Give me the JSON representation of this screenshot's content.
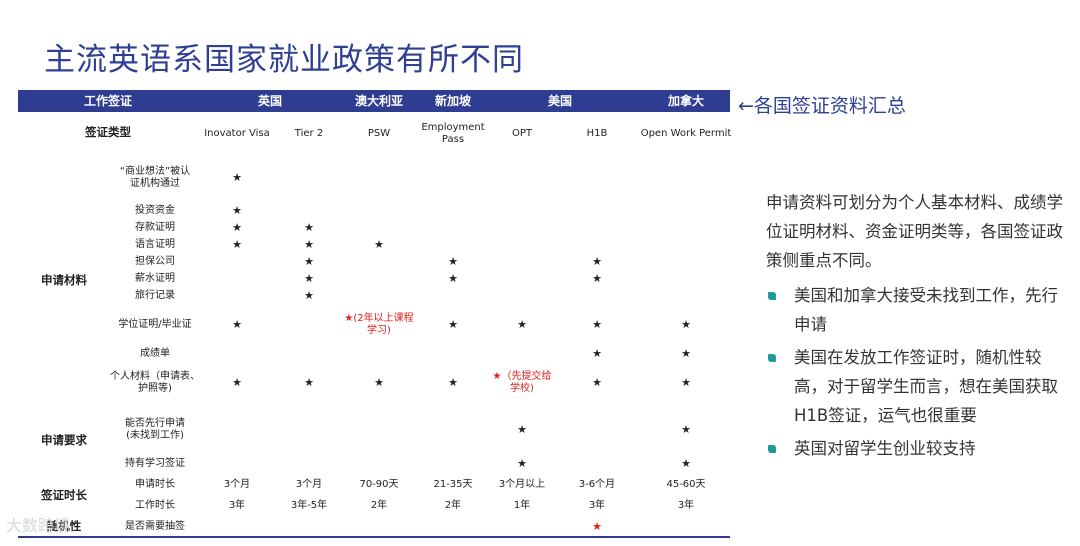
{
  "title": "主流英语系国家就业政策有所不同",
  "band": {
    "work_visa": "工作签证",
    "countries": [
      "英国",
      "澳大利亚",
      "新加坡",
      "美国",
      "加拿大"
    ]
  },
  "summary_label": "←各国签证资料汇总",
  "visa_type_label": "签证类型",
  "visa_types": [
    "Inovator Visa",
    "Tier 2",
    "PSW",
    "Employment\nPass",
    "OPT",
    "H1B",
    "Open Work Permit"
  ],
  "groups": {
    "materials": "申请材料",
    "requirements": "申请要求",
    "duration": "签证时长",
    "randomness": "随机性"
  },
  "items": {
    "business_idea": "“商业想法”被认\n证机构通过",
    "investment": "投资资金",
    "deposit": "存款证明",
    "language": "语言证明",
    "sponsor": "担保公司",
    "salary": "薪水证明",
    "travel": "旅行记录",
    "degree": "学位证明/毕业证",
    "transcript": "成绩单",
    "personal": "个人材料（申请表、\n护照等)",
    "apply_first": "能否先行申请\n(未找到工作)",
    "student_visa": "持有学习签证",
    "apply_time": "申请时长",
    "work_time": "工作时长",
    "lottery": "是否需要抽签"
  },
  "star": "★",
  "notes": {
    "psw_degree": "★(2年以上课程\n学习)",
    "opt_personal": "★（先提交给\n学校)"
  },
  "apply_time": [
    "3个月",
    "3个月",
    "70-90天",
    "21-35天",
    "3个月以上",
    "3-6个月",
    "45-60天"
  ],
  "work_time": [
    "3年",
    "3年-5年",
    "2年",
    "2年",
    "1年",
    "3年",
    "3年"
  ],
  "panel": {
    "intro": "申请资料可划分为个人基本材料、成绩学位证明材料、资金证明类等，各国签证政策侧重点不同。",
    "bullets": [
      "美国和加拿大接受未找到工作，先行申请",
      "美国在发放工作签证时，随机性较高，对于留学生而言，想在美国获取H1B签证，运气也很重要",
      "英国对留学生创业较支持"
    ]
  },
  "watermark": "大数跨境",
  "colors": {
    "navy": "#2e3c91",
    "teal": "#1f9a9a",
    "red": "#e02020"
  }
}
